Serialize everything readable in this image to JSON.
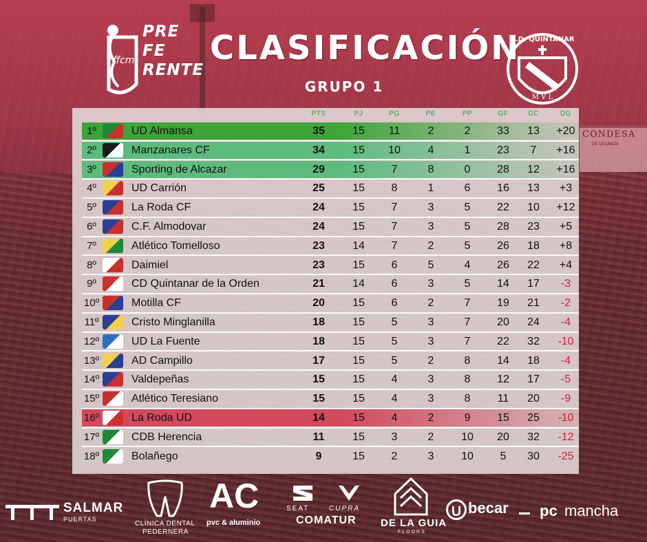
{
  "header": {
    "logo_lines": [
      "PRE",
      "FE",
      "RENTE"
    ],
    "logo_mark": "ffcm",
    "title": "CLASIFICACIÓN",
    "subtitle": "GRUPO 1",
    "crest_text": "C.D. QUINTANAR",
    "crest_letters": "M V L"
  },
  "background": {
    "building_sign": "CONDESA",
    "building_sub": "DE LEGANZA"
  },
  "colors": {
    "promotion_1": "#3fa43a",
    "promotion_2": "#5dbb7e",
    "relegation": "#d24a5c",
    "negative": "#d11e36",
    "header_label": "#2e9c43"
  },
  "table": {
    "columns": [
      "PTS",
      "PJ",
      "PG",
      "PE",
      "PP",
      "GF",
      "GC",
      "DG"
    ],
    "rows": [
      {
        "pos": "1º",
        "team": "UD Almansa",
        "pts": "35",
        "pj": "15",
        "pg": "11",
        "pe": "2",
        "pp": "2",
        "gf": "33",
        "gc": "13",
        "dg": "+20",
        "zone": "promotion_1",
        "crest": [
          "#1d8a3a",
          "#c8322e"
        ]
      },
      {
        "pos": "2º",
        "team": "Manzanares CF",
        "pts": "34",
        "pj": "15",
        "pg": "10",
        "pe": "4",
        "pp": "1",
        "gf": "23",
        "gc": "7",
        "dg": "+16",
        "zone": "promotion_2",
        "crest": [
          "#1b1b1b",
          "#ffffff"
        ]
      },
      {
        "pos": "3º",
        "team": "Sporting de Alcazar",
        "pts": "29",
        "pj": "15",
        "pg": "7",
        "pe": "8",
        "pp": "0",
        "gf": "28",
        "gc": "12",
        "dg": "+16",
        "zone": "promotion_2",
        "crest": [
          "#c8322e",
          "#2a3f93"
        ]
      },
      {
        "pos": "4º",
        "team": "UD Carrión",
        "pts": "25",
        "pj": "15",
        "pg": "8",
        "pe": "1",
        "pp": "6",
        "gf": "16",
        "gc": "13",
        "dg": "+3",
        "zone": "",
        "crest": [
          "#f2d04a",
          "#c8322e"
        ]
      },
      {
        "pos": "5º",
        "team": "La Roda CF",
        "pts": "24",
        "pj": "15",
        "pg": "7",
        "pe": "3",
        "pp": "5",
        "gf": "22",
        "gc": "10",
        "dg": "+12",
        "zone": "",
        "crest": [
          "#2a3f93",
          "#c8322e"
        ]
      },
      {
        "pos": "6º",
        "team": "C.F. Almodovar",
        "pts": "24",
        "pj": "15",
        "pg": "7",
        "pe": "3",
        "pp": "5",
        "gf": "28",
        "gc": "23",
        "dg": "+5",
        "zone": "",
        "crest": [
          "#2a3f93",
          "#c8322e"
        ]
      },
      {
        "pos": "7º",
        "team": "Atlético Tomelloso",
        "pts": "23",
        "pj": "14",
        "pg": "7",
        "pe": "2",
        "pp": "5",
        "gf": "26",
        "gc": "18",
        "dg": "+8",
        "zone": "",
        "crest": [
          "#f2d04a",
          "#1d8a3a"
        ]
      },
      {
        "pos": "8º",
        "team": "Daimiel",
        "pts": "23",
        "pj": "15",
        "pg": "6",
        "pe": "5",
        "pp": "4",
        "gf": "26",
        "gc": "22",
        "dg": "+4",
        "zone": "",
        "crest": [
          "#ffffff",
          "#c8322e"
        ]
      },
      {
        "pos": "9º",
        "team": "CD Quintanar de la Orden",
        "pts": "21",
        "pj": "14",
        "pg": "6",
        "pe": "3",
        "pp": "5",
        "gf": "14",
        "gc": "17",
        "dg": "-3",
        "zone": "",
        "crest": [
          "#c8322e",
          "#ffffff"
        ]
      },
      {
        "pos": "10º",
        "team": "Motilla CF",
        "pts": "20",
        "pj": "15",
        "pg": "6",
        "pe": "2",
        "pp": "7",
        "gf": "19",
        "gc": "21",
        "dg": "-2",
        "zone": "",
        "crest": [
          "#c8322e",
          "#2a3f93"
        ]
      },
      {
        "pos": "11º",
        "team": "Cristo Minglanilla",
        "pts": "18",
        "pj": "15",
        "pg": "5",
        "pe": "3",
        "pp": "7",
        "gf": "20",
        "gc": "24",
        "dg": "-4",
        "zone": "",
        "crest": [
          "#2a3f93",
          "#f2d04a"
        ]
      },
      {
        "pos": "12º",
        "team": "UD La Fuente",
        "pts": "18",
        "pj": "15",
        "pg": "5",
        "pe": "3",
        "pp": "7",
        "gf": "22",
        "gc": "32",
        "dg": "-10",
        "zone": "",
        "crest": [
          "#2a6fbf",
          "#ffffff"
        ]
      },
      {
        "pos": "13º",
        "team": "AD Campillo",
        "pts": "17",
        "pj": "15",
        "pg": "5",
        "pe": "2",
        "pp": "8",
        "gf": "14",
        "gc": "18",
        "dg": "-4",
        "zone": "",
        "crest": [
          "#f2d04a",
          "#2a3f93"
        ]
      },
      {
        "pos": "14º",
        "team": "Valdepeñas",
        "pts": "15",
        "pj": "15",
        "pg": "4",
        "pe": "3",
        "pp": "8",
        "gf": "12",
        "gc": "17",
        "dg": "-5",
        "zone": "",
        "crest": [
          "#2a3f93",
          "#c8322e"
        ]
      },
      {
        "pos": "15º",
        "team": "Atlético Teresiano",
        "pts": "15",
        "pj": "15",
        "pg": "4",
        "pe": "3",
        "pp": "8",
        "gf": "11",
        "gc": "20",
        "dg": "-9",
        "zone": "",
        "crest": [
          "#c8322e",
          "#ffffff"
        ]
      },
      {
        "pos": "16º",
        "team": "La Roda UD",
        "pts": "14",
        "pj": "15",
        "pg": "4",
        "pe": "2",
        "pp": "9",
        "gf": "15",
        "gc": "25",
        "dg": "-10",
        "zone": "relegation",
        "crest": [
          "#ffffff",
          "#c8322e"
        ]
      },
      {
        "pos": "17º",
        "team": "CDB Herencia",
        "pts": "11",
        "pj": "15",
        "pg": "3",
        "pe": "2",
        "pp": "10",
        "gf": "20",
        "gc": "32",
        "dg": "-12",
        "zone": "",
        "crest": [
          "#1d8a3a",
          "#ffffff"
        ]
      },
      {
        "pos": "18º",
        "team": "Bolañego",
        "pts": "9",
        "pj": "15",
        "pg": "2",
        "pe": "3",
        "pp": "10",
        "gf": "5",
        "gc": "30",
        "dg": "-25",
        "zone": "",
        "crest": [
          "#1d8a3a",
          "#ffffff"
        ]
      }
    ]
  },
  "sponsors": {
    "salmar": "SALMAR",
    "salmar_sub": "PUERTAS",
    "clinica": "CLÍNICA DENTAL",
    "clinica_sub": "PEDERNERA",
    "ac": "AC",
    "ac_sub": "pvc & aluminio",
    "seat": "SEAT",
    "cupra": "CUPRA",
    "comatur": "COMATUR",
    "guia": "DE LA GUIA",
    "guia_sub": "FLOORS",
    "ubecar": "becar",
    "ubecar_u": "U",
    "pcmancha": "mancha",
    "pcmancha_pc": "pc"
  }
}
